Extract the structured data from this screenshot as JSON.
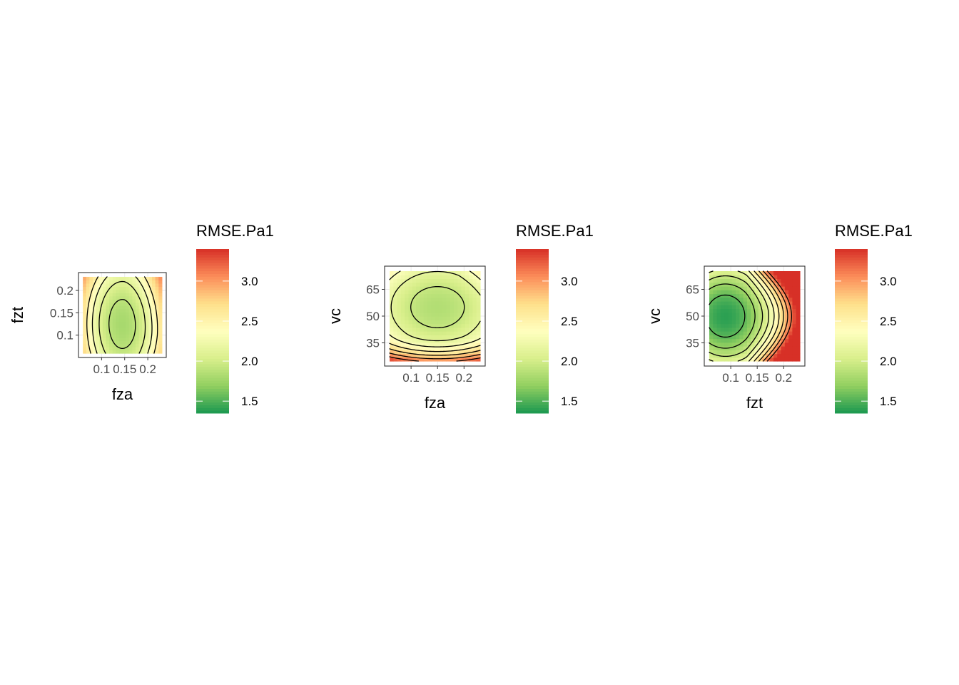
{
  "chart_data": [
    {
      "type": "heatmap",
      "subtype": "filled contour",
      "x_var": "fza",
      "y_var": "fzt",
      "fill_var": "RMSE.Pa1",
      "xlabel": "fza",
      "ylabel": "fzt",
      "xlim": [
        0.05,
        0.24
      ],
      "ylim": [
        0.05,
        0.24
      ],
      "xticks": [
        0.1,
        0.15,
        0.2
      ],
      "xtick_labels": [
        "0.1",
        "0.15",
        "0.2"
      ],
      "yticks": [
        0.1,
        0.15,
        0.2
      ],
      "ytick_labels": [
        "0.1",
        "0.15",
        "0.2"
      ],
      "minimum": {
        "x": 0.145,
        "y": 0.125,
        "value": 1.8
      },
      "value_range": [
        1.8,
        2.5
      ],
      "contour_levels": [
        1.9,
        2.1,
        2.3,
        2.5
      ],
      "legend": {
        "title": "RMSE.Pa1",
        "limits": [
          1.35,
          3.4
        ],
        "breaks": [
          1.5,
          2.0,
          2.5,
          3.0
        ],
        "labels": [
          "1.5",
          "2.0",
          "2.5",
          "3.0"
        ],
        "colors": [
          "#1a9850",
          "#91cf60",
          "#d9ef8b",
          "#ffffbf",
          "#fee08b",
          "#fc8d59",
          "#d73027"
        ]
      },
      "grid": true
    },
    {
      "type": "heatmap",
      "subtype": "filled contour",
      "x_var": "fza",
      "y_var": "vc",
      "fill_var": "RMSE.Pa1",
      "xlabel": "fza",
      "ylabel": "vc",
      "xlim": [
        0.05,
        0.24
      ],
      "ylim": [
        22,
        78
      ],
      "xticks": [
        0.1,
        0.15,
        0.2
      ],
      "xtick_labels": [
        "0.1",
        "0.15",
        "0.2"
      ],
      "yticks": [
        35,
        50,
        65
      ],
      "ytick_labels": [
        "35",
        "50",
        "65"
      ],
      "minimum": {
        "x": 0.15,
        "y": 55,
        "value": 1.85
      },
      "value_range": [
        1.85,
        3.4
      ],
      "contour_levels": [
        1.95,
        2.15,
        2.35,
        2.55,
        2.75,
        2.95,
        3.15
      ],
      "legend": {
        "title": "RMSE.Pa1",
        "limits": [
          1.35,
          3.4
        ],
        "breaks": [
          1.5,
          2.0,
          2.5,
          3.0
        ],
        "labels": [
          "1.5",
          "2.0",
          "2.5",
          "3.0"
        ],
        "colors": [
          "#1a9850",
          "#91cf60",
          "#d9ef8b",
          "#ffffbf",
          "#fee08b",
          "#fc8d59",
          "#d73027"
        ]
      },
      "grid": true
    },
    {
      "type": "heatmap",
      "subtype": "filled contour",
      "x_var": "fzt",
      "y_var": "vc",
      "fill_var": "RMSE.Pa1",
      "xlabel": "fzt",
      "ylabel": "vc",
      "xlim": [
        0.05,
        0.24
      ],
      "ylim": [
        22,
        78
      ],
      "xticks": [
        0.1,
        0.15,
        0.2
      ],
      "xtick_labels": [
        "0.1",
        "0.15",
        "0.2"
      ],
      "yticks": [
        35,
        50,
        65
      ],
      "ytick_labels": [
        "35",
        "50",
        "65"
      ],
      "minimum": {
        "x": 0.09,
        "y": 50,
        "value": 1.4
      },
      "value_range": [
        1.4,
        3.4
      ],
      "contour_levels": [
        1.55,
        1.75,
        1.95,
        2.15,
        2.35,
        2.55,
        2.75,
        2.95,
        3.15
      ],
      "legend": {
        "title": "RMSE.Pa1",
        "limits": [
          1.35,
          3.4
        ],
        "breaks": [
          1.5,
          2.0,
          2.5,
          3.0
        ],
        "labels": [
          "1.5",
          "2.0",
          "2.5",
          "3.0"
        ],
        "colors": [
          "#1a9850",
          "#91cf60",
          "#d9ef8b",
          "#ffffbf",
          "#fee08b",
          "#fc8d59",
          "#d73027"
        ]
      },
      "grid": true
    }
  ]
}
